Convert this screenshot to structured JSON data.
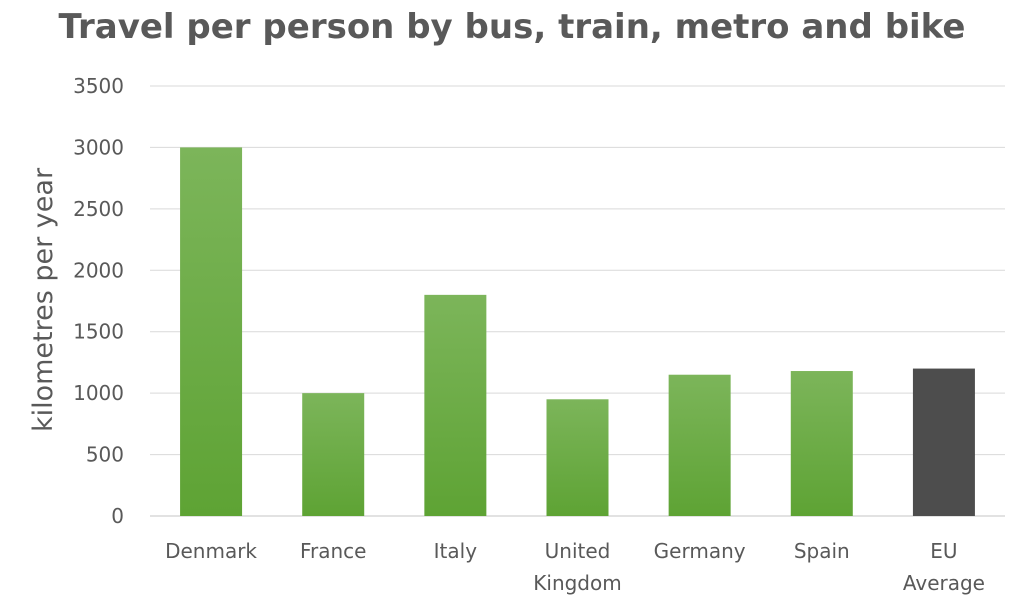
{
  "chart_data": {
    "type": "bar",
    "title": "Travel per person by bus, train, metro and bike",
    "xlabel": "",
    "ylabel": "kilometres per year",
    "ylim": [
      0,
      3500
    ],
    "yticks": [
      0,
      500,
      1000,
      1500,
      2000,
      2500,
      3000,
      3500
    ],
    "grid": true,
    "legend": "none",
    "categories": [
      [
        "Denmark"
      ],
      [
        "France"
      ],
      [
        "Italy"
      ],
      [
        "United",
        "Kingdom"
      ],
      [
        "Germany"
      ],
      [
        "Spain"
      ],
      [
        "EU",
        "Average"
      ]
    ],
    "values": [
      3000,
      1000,
      1800,
      950,
      1150,
      1180,
      1200
    ],
    "colors": {
      "bar_top": "#7cb55a",
      "bar_bottom": "#5ea334",
      "highlight": "#4d4d4d",
      "grid": "#d9d9d9",
      "text": "#595959"
    },
    "highlight_index": 6
  }
}
